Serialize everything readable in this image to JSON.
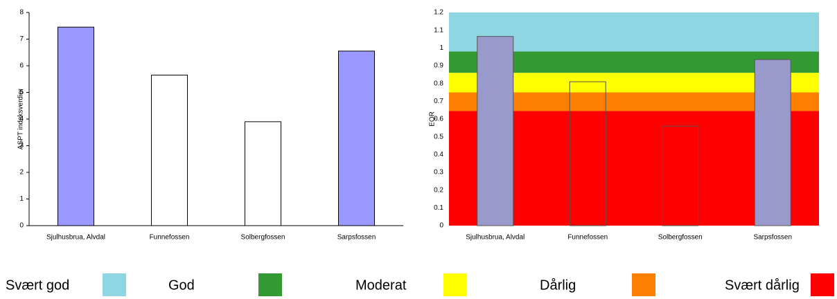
{
  "chart_data": [
    {
      "type": "bar",
      "ylabel": "ASPT indeksverdier",
      "categories": [
        "Sjulhusbrua, Alvdal",
        "Funnefossen",
        "Solbergfossen",
        "Sarpsfossen"
      ],
      "values": [
        7.45,
        5.65,
        3.9,
        6.55
      ],
      "colors": [
        "#9999ff",
        "#ffffff",
        "#ffffff",
        "#9999ff"
      ],
      "edgecolor": "#000000",
      "ylim": [
        0,
        8
      ],
      "yticks": [
        0,
        1,
        2,
        3,
        4,
        5,
        6,
        7,
        8
      ]
    },
    {
      "type": "bar",
      "ylabel": "EQR",
      "categories": [
        "Sjulhusbrua, Alvdal",
        "Funnefossen",
        "Solbergfossen",
        "Sarpsfossen"
      ],
      "values": [
        1.065,
        0.81,
        0.56,
        0.935
      ],
      "colors": [
        "#9999cc",
        "none",
        "none",
        "#9999cc"
      ],
      "edgecolor": "#555555",
      "ylim": [
        0,
        1.2
      ],
      "yticks": [
        0,
        0.1,
        0.2,
        0.3,
        0.4,
        0.5,
        0.6,
        0.7,
        0.8,
        0.9,
        1,
        1.1,
        1.2
      ],
      "bands": [
        {
          "name": "Svært god",
          "color": "#8fd6e3",
          "from": 0.98,
          "to": 1.2
        },
        {
          "name": "God",
          "color": "#339933",
          "from": 0.86,
          "to": 0.98
        },
        {
          "name": "Moderat",
          "color": "#ffff00",
          "from": 0.75,
          "to": 0.86
        },
        {
          "name": "Dårlig",
          "color": "#ff8000",
          "from": 0.645,
          "to": 0.75
        },
        {
          "name": "Svært dårlig",
          "color": "#ff0000",
          "from": 0,
          "to": 0.645
        }
      ]
    }
  ]
}
